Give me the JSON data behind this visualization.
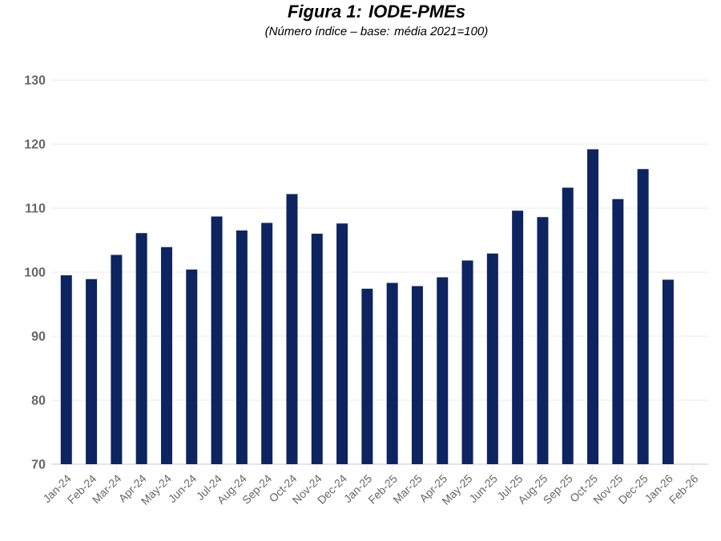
{
  "chart_data": {
    "type": "bar",
    "title": "Figura 1: IODE-PMEs",
    "subtitle": "(Número índice – base: média 2021=100)",
    "categories": [
      "Jan-24",
      "Feb-24",
      "Mar-24",
      "Apr-24",
      "May-24",
      "Jun-24",
      "Jul-24",
      "Aug-24",
      "Sep-24",
      "Oct-24",
      "Nov-24",
      "Dec-24",
      "Jan-25",
      "Feb-25",
      "Mar-25",
      "Apr-25",
      "May-25",
      "Jun-25",
      "Jul-25",
      "Aug-25",
      "Sep-25",
      "Oct-25",
      "Nov-25",
      "Dec-25",
      "Jan-26",
      "Feb-26"
    ],
    "values": [
      99.5,
      98.9,
      102.7,
      106.1,
      103.9,
      100.4,
      108.7,
      106.5,
      107.7,
      112.2,
      106.0,
      107.6,
      97.4,
      98.3,
      97.8,
      99.2,
      101.8,
      102.9,
      109.6,
      108.6,
      113.2,
      119.2,
      111.4,
      116.1,
      98.8,
      null
    ],
    "color": "#0d2461",
    "ylim": [
      70,
      130
    ],
    "yticks": [
      70,
      80,
      90,
      100,
      110,
      120,
      130
    ],
    "grid": "y"
  }
}
